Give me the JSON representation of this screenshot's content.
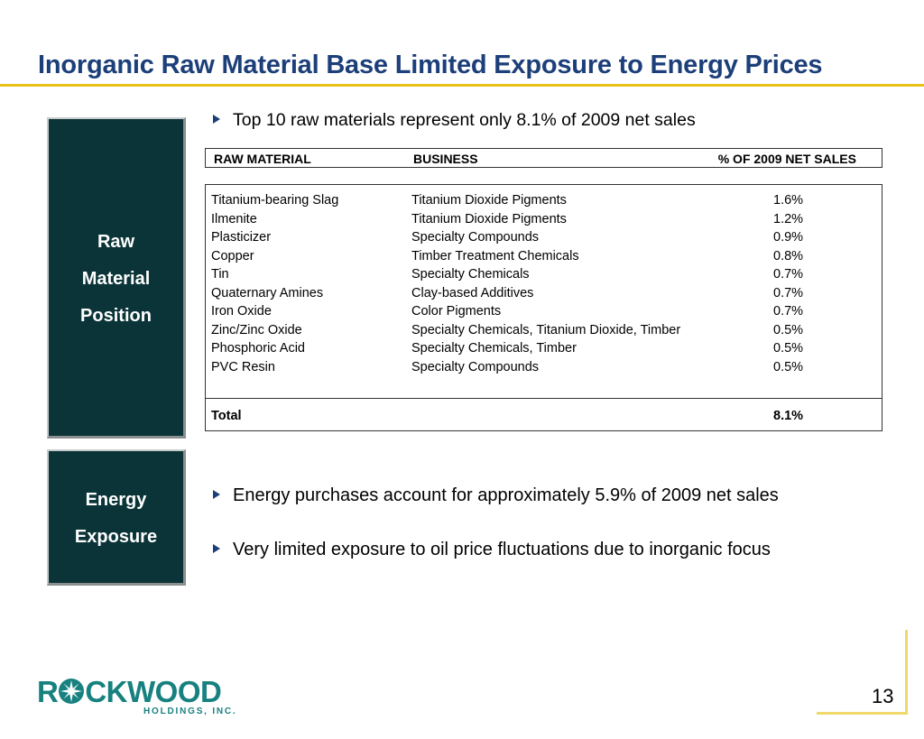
{
  "title": "Inorganic Raw Material Base Limited Exposure to Energy Prices",
  "raw_box": {
    "line1": "Raw",
    "line2": "Material",
    "line3": "Position"
  },
  "energy_box": {
    "line1": "Energy",
    "line2": "Exposure"
  },
  "bullets": {
    "b1": "Top 10 raw materials represent only 8.1% of 2009 net sales",
    "b2": "Energy purchases account for approximately 5.9% of 2009 net sales",
    "b3": "Very limited exposure to oil price fluctuations due to inorganic focus"
  },
  "table": {
    "headers": {
      "material": "RAW MATERIAL",
      "business": "BUSINESS",
      "pct": "% OF 2009 NET SALES"
    },
    "rows": [
      {
        "material": "Titanium-bearing Slag",
        "business": "Titanium Dioxide Pigments",
        "pct": "1.6%"
      },
      {
        "material": "Ilmenite",
        "business": "Titanium Dioxide Pigments",
        "pct": "1.2%"
      },
      {
        "material": "Plasticizer",
        "business": "Specialty Compounds",
        "pct": "0.9%"
      },
      {
        "material": "Copper",
        "business": "Timber Treatment Chemicals",
        "pct": "0.8%"
      },
      {
        "material": "Tin",
        "business": "Specialty Chemicals",
        "pct": "0.7%"
      },
      {
        "material": "Quaternary Amines",
        "business": "Clay-based Additives",
        "pct": "0.7%"
      },
      {
        "material": "Iron Oxide",
        "business": "Color Pigments",
        "pct": "0.7%"
      },
      {
        "material": "Zinc/Zinc Oxide",
        "business": "Specialty Chemicals, Titanium Dioxide, Timber",
        "pct": "0.5%"
      },
      {
        "material": "Phosphoric Acid",
        "business": "Specialty Chemicals, Timber",
        "pct": "0.5%"
      },
      {
        "material": "PVC Resin",
        "business": "Specialty Compounds",
        "pct": "0.5%"
      }
    ],
    "total": {
      "label": "Total",
      "pct": "8.1%"
    }
  },
  "logo": {
    "word_pre": "R",
    "word_post": "CKWOOD",
    "sub": "HOLDINGS, INC."
  },
  "page_number": "13",
  "colors": {
    "title": "#1c3f7a",
    "accent": "#e8c21a",
    "box": "#0b3438",
    "logo": "#17817f"
  }
}
